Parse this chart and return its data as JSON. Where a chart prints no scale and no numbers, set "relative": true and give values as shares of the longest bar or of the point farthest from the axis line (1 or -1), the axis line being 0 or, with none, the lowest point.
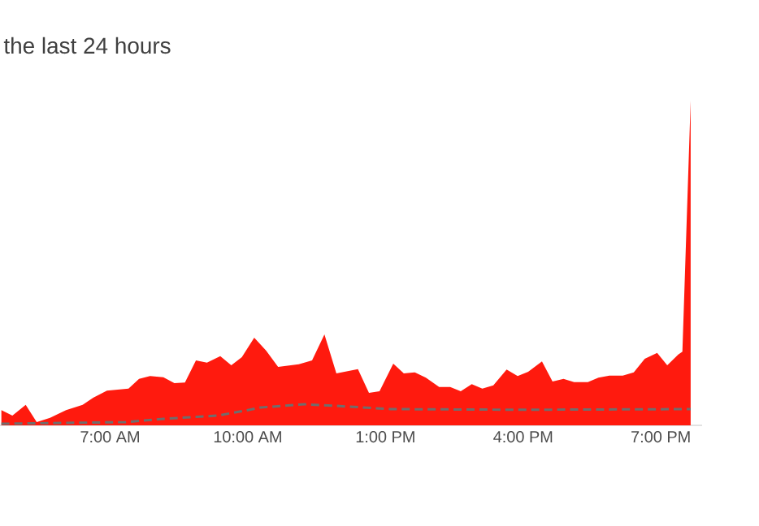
{
  "chart_data": {
    "type": "area",
    "title": "the last 24 hours",
    "relative": true,
    "tick_labels": "x",
    "xlim": [
      4.6,
      19.9
    ],
    "xticks": [
      {
        "value": 7,
        "label": "7:00 AM"
      },
      {
        "value": 10,
        "label": "10:00 AM"
      },
      {
        "value": 13,
        "label": "1:00 PM"
      },
      {
        "value": 16,
        "label": "4:00 PM"
      },
      {
        "value": 19,
        "label": "7:00 PM"
      }
    ],
    "series": [
      {
        "color": "#ff1a0e",
        "x": [
          4.63,
          4.87,
          5.16,
          5.4,
          5.69,
          6.04,
          6.4,
          6.63,
          6.93,
          7.4,
          7.63,
          7.87,
          8.16,
          8.4,
          8.63,
          8.87,
          9.11,
          9.4,
          9.64,
          9.87,
          10.14,
          10.4,
          10.66,
          11.11,
          11.4,
          11.67,
          11.93,
          12.4,
          12.64,
          12.87,
          13.17,
          13.4,
          13.64,
          13.88,
          14.17,
          14.41,
          14.64,
          14.88,
          15.11,
          15.35,
          15.64,
          15.88,
          16.11,
          16.41,
          16.64,
          16.88,
          17.11,
          17.41,
          17.64,
          17.88,
          18.17,
          18.41,
          18.65,
          18.92,
          19.14,
          19.38,
          19.47,
          19.65
        ],
        "values": [
          0.047,
          0.03,
          0.063,
          0.01,
          0.023,
          0.047,
          0.063,
          0.085,
          0.107,
          0.113,
          0.143,
          0.152,
          0.148,
          0.13,
          0.132,
          0.2,
          0.193,
          0.213,
          0.185,
          0.21,
          0.27,
          0.23,
          0.18,
          0.188,
          0.2,
          0.28,
          0.16,
          0.173,
          0.1,
          0.105,
          0.19,
          0.16,
          0.163,
          0.147,
          0.118,
          0.118,
          0.105,
          0.127,
          0.113,
          0.123,
          0.172,
          0.152,
          0.165,
          0.197,
          0.135,
          0.143,
          0.133,
          0.133,
          0.147,
          0.153,
          0.153,
          0.163,
          0.205,
          0.223,
          0.185,
          0.218,
          0.227,
          1.0
        ]
      },
      {
        "type": "line",
        "line_style": "dashed",
        "color": "#6e6e6e",
        "x": [
          4.63,
          7.34,
          8.16,
          9.34,
          9.93,
          10.28,
          11.23,
          11.93,
          13.11,
          15.94,
          19.65
        ],
        "values": [
          0.005,
          0.01,
          0.02,
          0.03,
          0.045,
          0.055,
          0.065,
          0.06,
          0.05,
          0.048,
          0.05
        ]
      }
    ]
  }
}
